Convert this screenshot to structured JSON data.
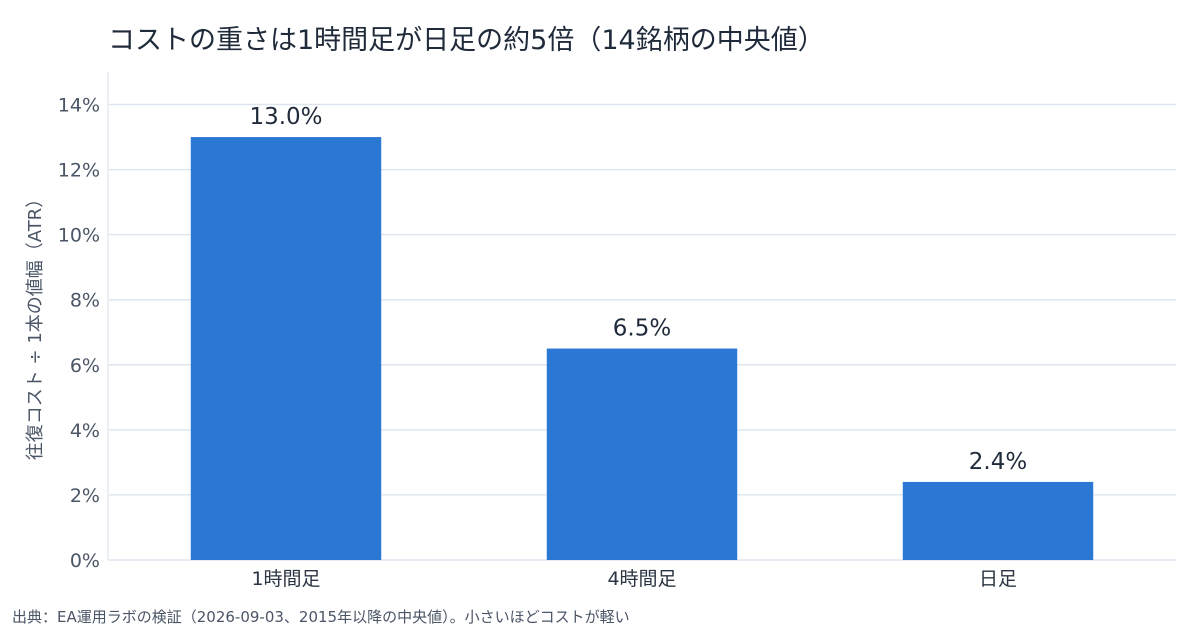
{
  "chart_data": {
    "type": "bar",
    "title": "コストの重さは1時間足が日足の約5倍（14銘柄の中央値）",
    "xlabel": "",
    "ylabel": "往復コスト ÷ 1本の値幅（ATR）",
    "categories": [
      "1時間足",
      "4時間足",
      "日足"
    ],
    "values": [
      13.0,
      6.5,
      2.4
    ],
    "value_labels": [
      "13.0%",
      "6.5%",
      "2.4%"
    ],
    "ylim": [
      0,
      15
    ],
    "yticks": [
      0,
      2,
      4,
      6,
      8,
      10,
      12,
      14
    ],
    "ytick_labels": [
      "0%",
      "2%",
      "4%",
      "6%",
      "8%",
      "10%",
      "12%",
      "14%"
    ],
    "grid": true,
    "bar_color": "#2b78d4"
  },
  "source": "出典：EA運用ラボの検証（2026-09-03、2015年以降の中央値）。小さいほどコストが軽い"
}
